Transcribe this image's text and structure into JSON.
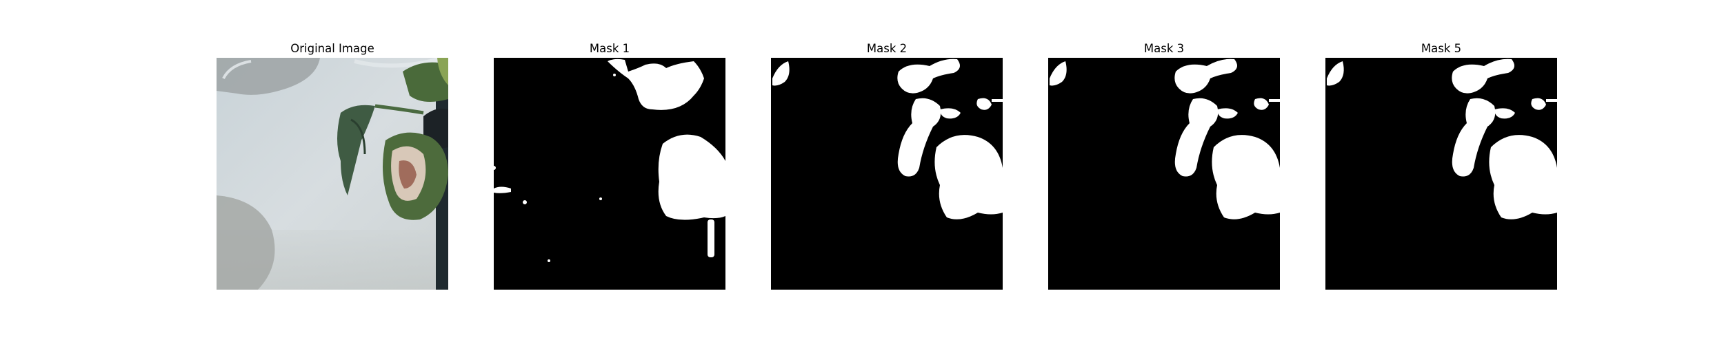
{
  "panels": [
    {
      "title": "Original Image"
    },
    {
      "title": "Mask 1"
    },
    {
      "title": "Mask 2"
    },
    {
      "title": "Mask 3"
    },
    {
      "title": "Mask 5"
    }
  ]
}
